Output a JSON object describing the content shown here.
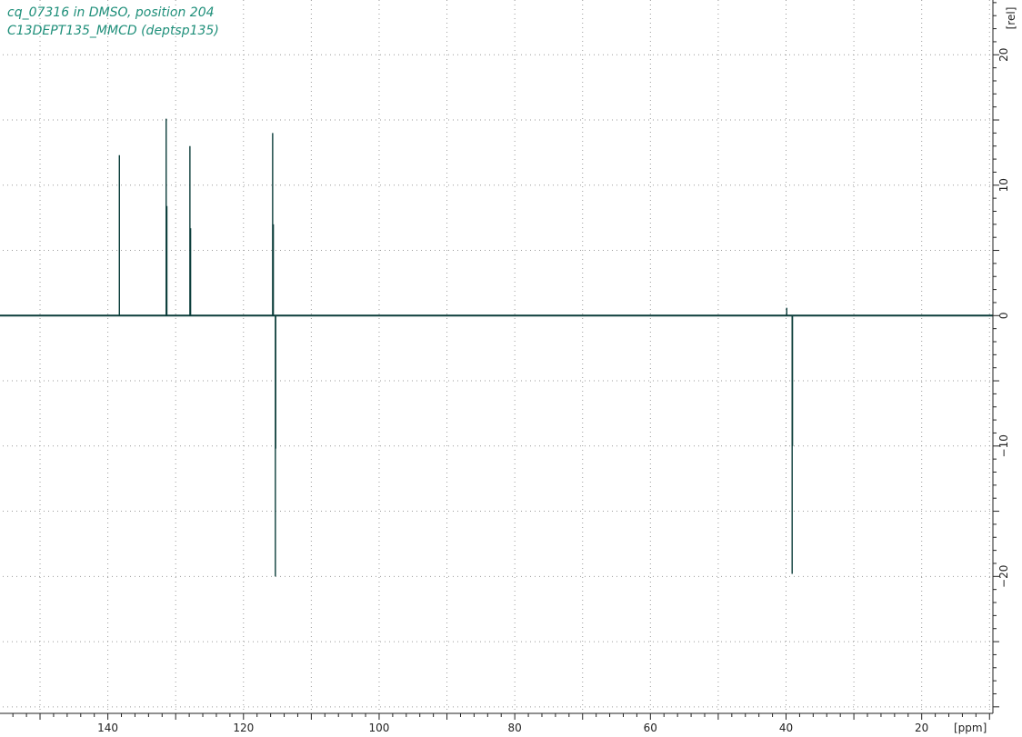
{
  "header": {
    "line1": "cq_07316 in DMSO, position 204",
    "line2": "C13DEPT135_MMCD (deptsp135)"
  },
  "colors": {
    "trace": "#0b3d3a",
    "title": "#1f8f7a",
    "grid": "#9a9a9a",
    "axis": "#222222"
  },
  "chart_data": {
    "type": "line",
    "title": "cq_07316 in DMSO, position 204",
    "subtitle": "C13DEPT135_MMCD (deptsp135)",
    "xlabel": "[ppm]",
    "ylabel": "[rel]",
    "x_reversed": true,
    "xlim": [
      155.5,
      9.5
    ],
    "ylim": [
      -30.5,
      24.2
    ],
    "x_ticks": [
      140,
      120,
      100,
      80,
      60,
      40,
      20
    ],
    "x_tick_labels": [
      "140",
      "120",
      "100",
      "80",
      "60",
      "40",
      "20"
    ],
    "y_ticks": [
      20,
      10,
      0,
      -10,
      -20
    ],
    "y_tick_labels": [
      "20",
      "10",
      "0",
      "−10",
      "−20"
    ],
    "grid": true,
    "peaks": [
      {
        "ppm": 138.3,
        "intensity": 12.3
      },
      {
        "ppm": 131.4,
        "intensity": 15.1
      },
      {
        "ppm": 131.3,
        "intensity": 8.4
      },
      {
        "ppm": 127.9,
        "intensity": 13.0
      },
      {
        "ppm": 127.8,
        "intensity": 6.7
      },
      {
        "ppm": 115.7,
        "intensity": 14.0
      },
      {
        "ppm": 115.6,
        "intensity": 7.0
      },
      {
        "ppm": 115.3,
        "intensity": -20.0
      },
      {
        "ppm": 115.25,
        "intensity": -10.2
      },
      {
        "ppm": 39.9,
        "intensity": 0.6
      },
      {
        "ppm": 39.1,
        "intensity": -19.8
      },
      {
        "ppm": 39.05,
        "intensity": -10.0
      }
    ]
  }
}
